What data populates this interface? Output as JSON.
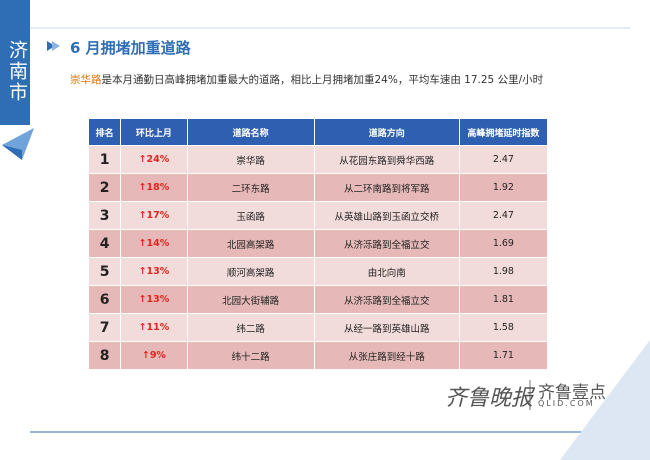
{
  "sidebar": {
    "city": "济南市"
  },
  "header": {
    "title": "6 月拥堵加重道路",
    "summary_lead": "崇华路",
    "summary": "是本月通勤日高峰拥堵加重最大的道路，相比上月拥堵加重24%，平均车速由 17.25 公里/小时"
  },
  "table": {
    "columns": [
      "排名",
      "环比上月",
      "道路名称",
      "道路方向",
      "高峰拥堵延时指数"
    ],
    "rows": [
      [
        1,
        "↑24%",
        "崇华路",
        "从花园东路到舜华西路",
        2.47
      ],
      [
        2,
        "↑18%",
        "二环东路",
        "从二环南路到将军路",
        1.92
      ],
      [
        3,
        "↑17%",
        "玉函路",
        "从英雄山路到玉函立交桥",
        2.47
      ],
      [
        4,
        "↑14%",
        "北园高架路",
        "从济泺路到全福立交",
        1.69
      ],
      [
        5,
        "↑13%",
        "顺河高架路",
        "由北向南",
        1.98
      ],
      [
        6,
        "↑13%",
        "北园大街辅路",
        "从济泺路到全福立交",
        1.81
      ],
      [
        7,
        "↑11%",
        "纬二路",
        "从经一路到英雄山路",
        1.58
      ],
      [
        8,
        "↑9%",
        "纬十二路",
        "从张庄路到经十路",
        1.71
      ]
    ]
  },
  "footer": {
    "logo_left": "齐鲁晚报",
    "logo_right": "齐鲁壹点",
    "logo_url": "QLID.COM"
  }
}
